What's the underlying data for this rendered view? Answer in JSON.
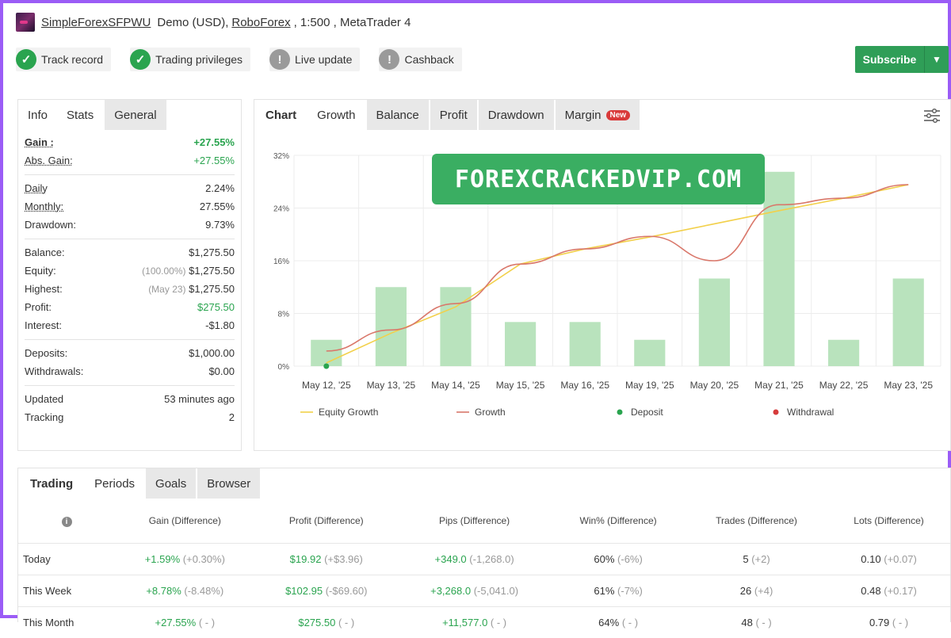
{
  "header": {
    "account_name": "SimpleForexSFPWU",
    "account_type": "Demo (USD),",
    "broker": "RoboForex",
    "leverage": ", 1:500 , MetaTrader 4"
  },
  "badges": [
    {
      "label": "Track record",
      "icon": "check-icon"
    },
    {
      "label": "Trading privileges",
      "icon": "check-icon"
    },
    {
      "label": "Live update",
      "icon": "exclamation-icon"
    },
    {
      "label": "Cashback",
      "icon": "exclamation-icon"
    }
  ],
  "subscribe": {
    "label": "Subscribe"
  },
  "stats_tabs": [
    "Info",
    "Stats",
    "General"
  ],
  "stats": {
    "gain": {
      "label": "Gain :",
      "value": "+27.55%"
    },
    "abs_gain": {
      "label": "Abs. Gain:",
      "value": "+27.55%"
    },
    "daily": {
      "label": "Daily",
      "value": "2.24%"
    },
    "monthly": {
      "label": "Monthly:",
      "value": "27.55%"
    },
    "drawdown": {
      "label": "Drawdown:",
      "value": "9.73%"
    },
    "balance": {
      "label": "Balance:",
      "value": "$1,275.50"
    },
    "equity": {
      "label": "Equity:",
      "pre": "(100.00%)",
      "value": "$1,275.50"
    },
    "highest": {
      "label": "Highest:",
      "pre": "(May 23)",
      "value": "$1,275.50"
    },
    "profit": {
      "label": "Profit:",
      "value": "$275.50"
    },
    "interest": {
      "label": "Interest:",
      "value": "-$1.80"
    },
    "deposits": {
      "label": "Deposits:",
      "value": "$1,000.00"
    },
    "withdrawals": {
      "label": "Withdrawals:",
      "value": "$0.00"
    },
    "updated": {
      "label": "Updated",
      "value": "53 minutes ago"
    },
    "tracking": {
      "label": "Tracking",
      "value": "2"
    }
  },
  "chart_tabs": {
    "chart": "Chart",
    "growth": "Growth",
    "balance": "Balance",
    "profit": "Profit",
    "drawdown": "Drawdown",
    "margin": "Margin",
    "new_badge": "New"
  },
  "watermark": "FOREXCRACKEDVIP.COM",
  "chart_data": {
    "type": "bar",
    "categories": [
      "May 12, '25",
      "May 13, '25",
      "May 14, '25",
      "May 15, '25",
      "May 16, '25",
      "May 19, '25",
      "May 20, '25",
      "May 21, '25",
      "May 22, '25",
      "May 23, '25"
    ],
    "series": [
      {
        "name": "Daily bars",
        "type": "bar",
        "values": [
          4,
          12,
          12,
          6.7,
          6.7,
          4,
          13.3,
          29.5,
          4,
          13.3
        ]
      },
      {
        "name": "Equity Growth",
        "type": "line",
        "color": "#f2d04a",
        "values": [
          0.5,
          5,
          9,
          15.5,
          17.8,
          19.6,
          21.6,
          23.6,
          25.5,
          27.55
        ]
      },
      {
        "name": "Growth",
        "type": "line",
        "color": "#d9776a",
        "values": [
          2.3,
          5.5,
          9.5,
          15.5,
          17.8,
          19.7,
          16,
          24.5,
          25.5,
          27.55
        ]
      }
    ],
    "deposit_points": [
      {
        "x": "May 12, '25",
        "y": 0
      }
    ],
    "yticks": [
      "0%",
      "8%",
      "16%",
      "24%",
      "32%"
    ],
    "ylim": [
      0,
      32
    ],
    "legend": [
      "Equity Growth",
      "Growth",
      "Deposit",
      "Withdrawal"
    ],
    "colors": {
      "bar": "#b9e3bd",
      "deposit": "#2aa44f",
      "withdrawal": "#d63b3b"
    }
  },
  "trading_tabs": [
    "Trading",
    "Periods",
    "Goals",
    "Browser"
  ],
  "periods": {
    "headers": [
      "Gain (Difference)",
      "Profit (Difference)",
      "Pips (Difference)",
      "Win% (Difference)",
      "Trades (Difference)",
      "Lots (Difference)"
    ],
    "rows": [
      {
        "name": "Today",
        "gain": "+1.59%",
        "gain_d": "(+0.30%)",
        "profit": "$19.92",
        "profit_d": "(+$3.96)",
        "pips": "+349.0",
        "pips_d": "(-1,268.0)",
        "win": "60%",
        "win_d": "(-6%)",
        "trades": "5",
        "trades_d": "(+2)",
        "lots": "0.10",
        "lots_d": "(+0.07)"
      },
      {
        "name": "This Week",
        "gain": "+8.78%",
        "gain_d": "(-8.48%)",
        "profit": "$102.95",
        "profit_d": "(-$69.60)",
        "pips": "+3,268.0",
        "pips_d": "(-5,041.0)",
        "win": "61%",
        "win_d": "(-7%)",
        "trades": "26",
        "trades_d": "(+4)",
        "lots": "0.48",
        "lots_d": "(+0.17)"
      },
      {
        "name": "This Month",
        "gain": "+27.55%",
        "gain_d": "( - )",
        "profit": "$275.50",
        "profit_d": "( - )",
        "pips": "+11,577.0",
        "pips_d": "( - )",
        "win": "64%",
        "win_d": "( - )",
        "trades": "48",
        "trades_d": "( - )",
        "lots": "0.79",
        "lots_d": "( - )"
      }
    ]
  }
}
